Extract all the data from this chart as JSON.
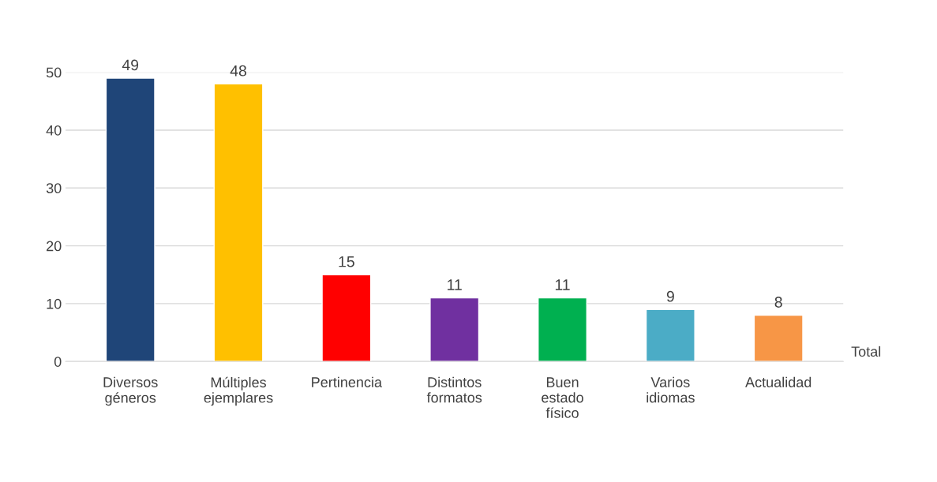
{
  "chart_data": {
    "type": "bar",
    "categories": [
      "Diversos\ngéneros",
      "Múltiples\nejemplares",
      "Pertinencia",
      "Distintos\nformatos",
      "Buen\nestado\nfísico",
      "Varios\nidiomas",
      "Actualidad"
    ],
    "values": [
      49,
      48,
      15,
      11,
      11,
      9,
      8
    ],
    "colors": [
      "#1f4578",
      "#ffc000",
      "#ff0000",
      "#7030a0",
      "#00b050",
      "#4bacc6",
      "#f79646"
    ],
    "data_labels": true,
    "ylim": [
      0,
      50
    ],
    "yticks": [
      0,
      10,
      20,
      30,
      40,
      50
    ],
    "grid": "y",
    "annotations": [
      "Total"
    ]
  }
}
